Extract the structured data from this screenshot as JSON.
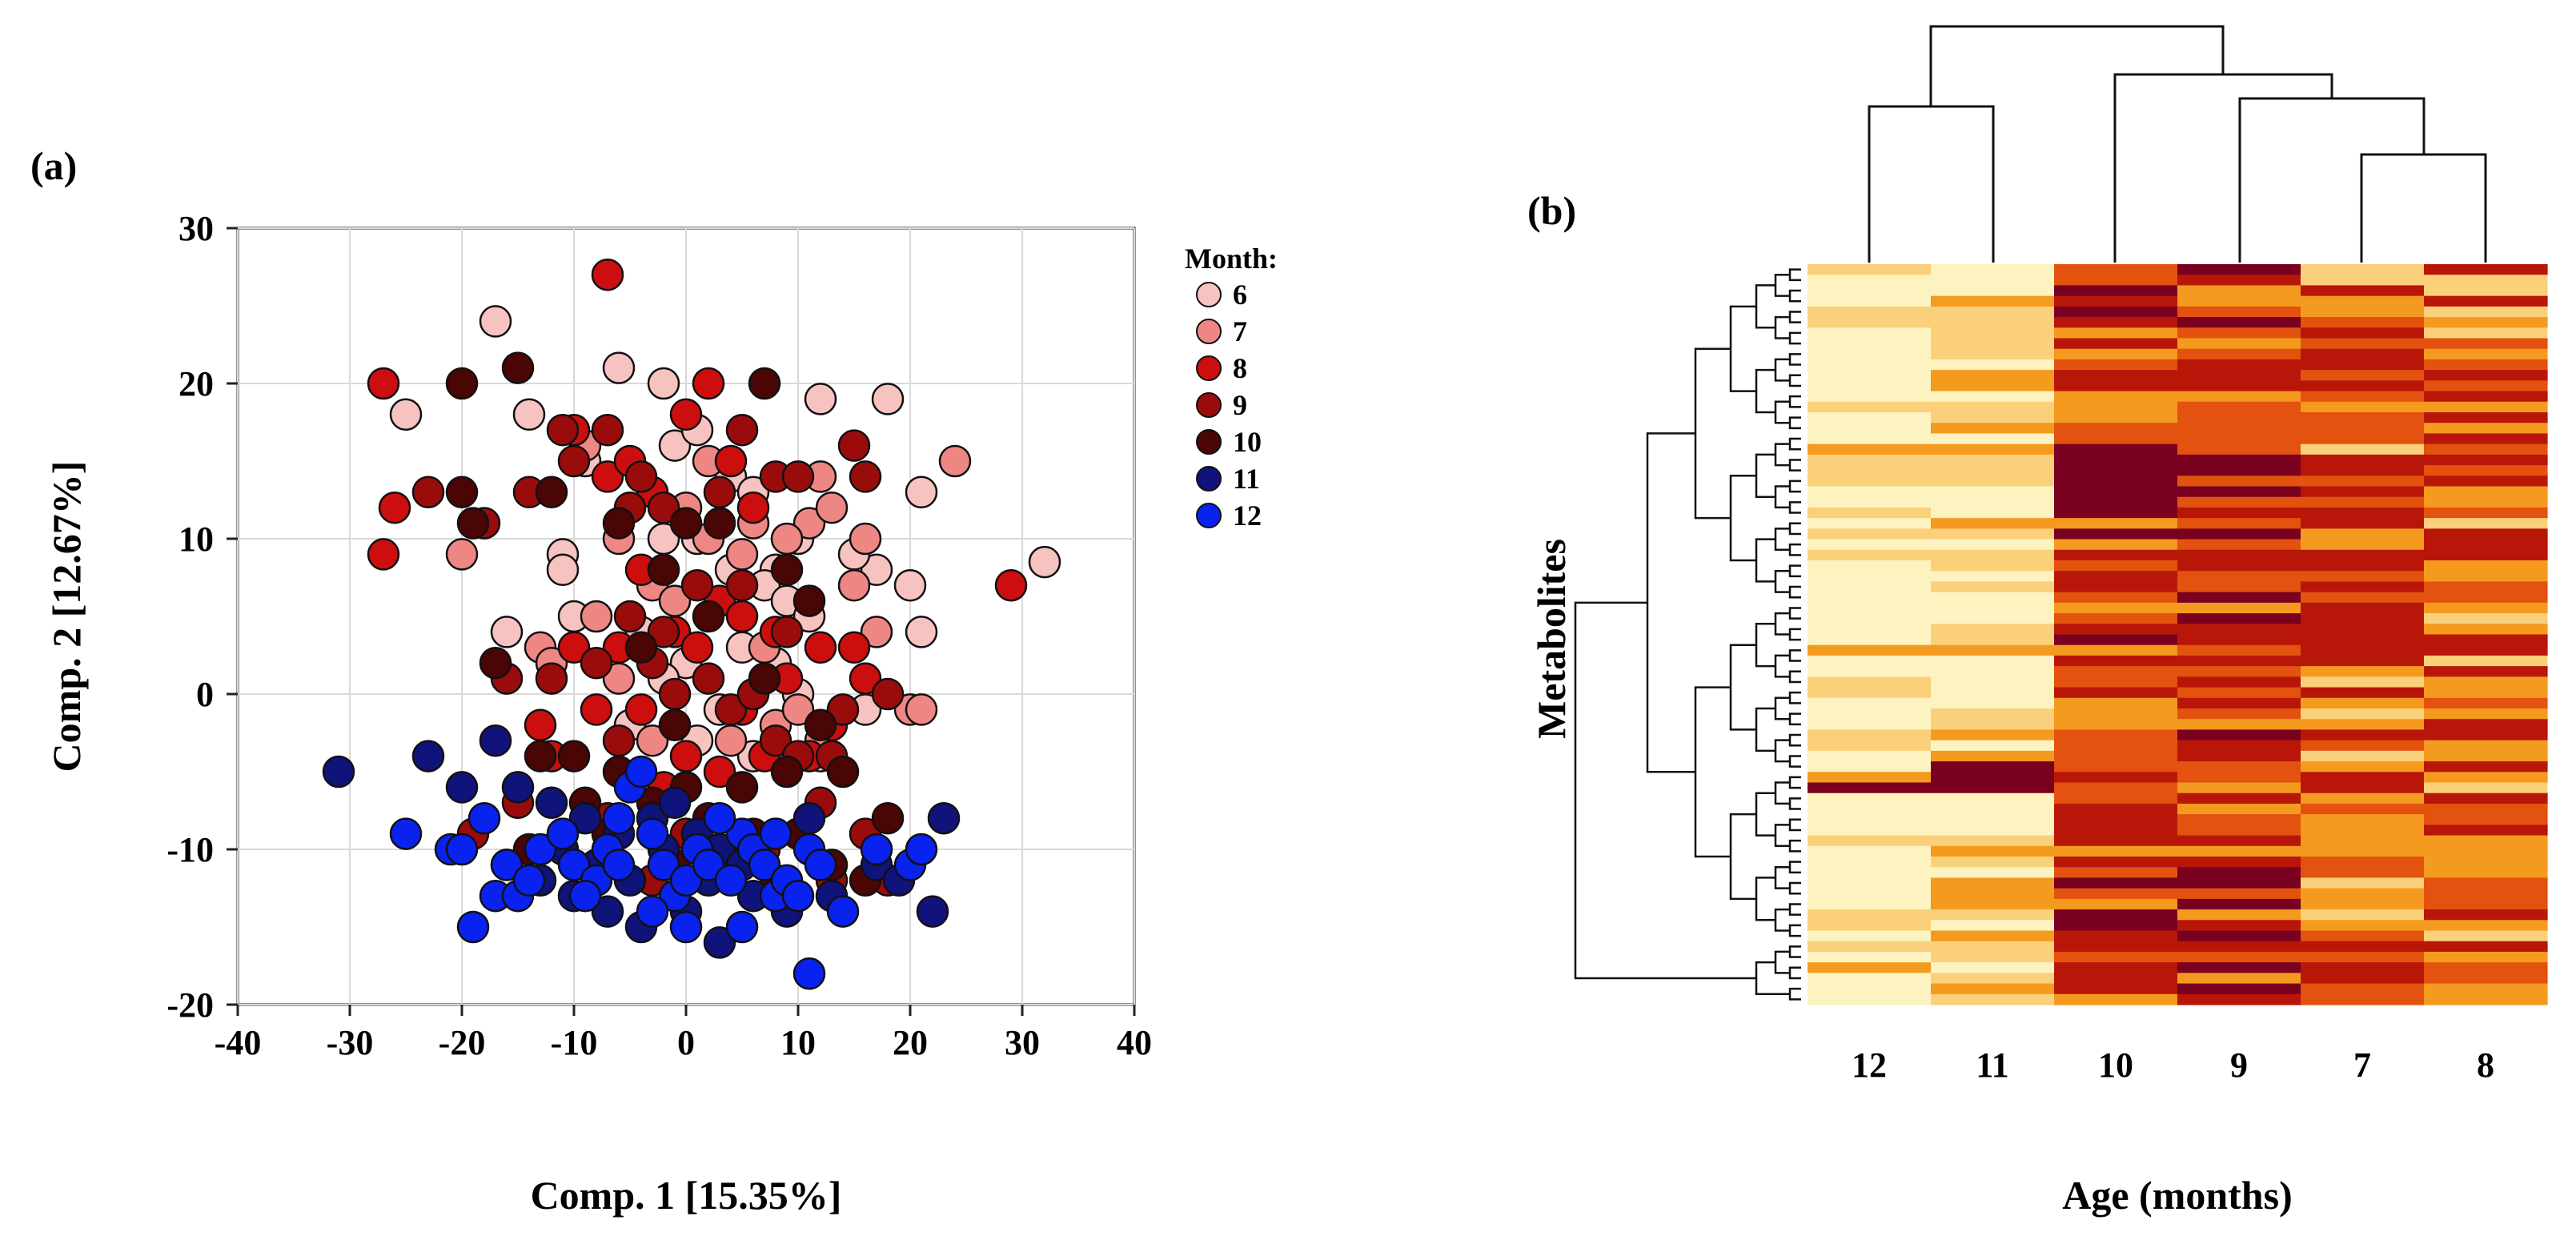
{
  "chart_data": [
    {
      "type": "scatter",
      "panel_label": "(a)",
      "xlabel": "Comp. 1 [15.35%]",
      "ylabel": "Comp. 2 [12.67%]",
      "xlim": [
        -40,
        40
      ],
      "ylim": [
        -20,
        30
      ],
      "xticks": [
        "-40",
        "-30",
        "-20",
        "-10",
        "0",
        "10",
        "20",
        "30",
        "40"
      ],
      "yticks": [
        "-20",
        "-10",
        "0",
        "10",
        "20",
        "30"
      ],
      "grid": true,
      "legend": {
        "title": "Month:",
        "position": "right"
      },
      "series": [
        {
          "name": "6",
          "color": "#f7c3c0",
          "points": [
            [
              -25,
              18
            ],
            [
              -17,
              24
            ],
            [
              -14,
              18
            ],
            [
              -9,
              15
            ],
            [
              -6,
              21
            ],
            [
              -2,
              20
            ],
            [
              -1,
              16
            ],
            [
              1,
              17
            ],
            [
              4,
              14
            ],
            [
              6,
              13
            ],
            [
              8,
              8
            ],
            [
              10,
              10
            ],
            [
              12,
              19
            ],
            [
              18,
              19
            ],
            [
              21,
              13
            ],
            [
              20,
              7
            ],
            [
              21,
              4
            ],
            [
              32,
              8.5
            ],
            [
              -11,
              9
            ],
            [
              -11,
              8
            ],
            [
              -2,
              10
            ],
            [
              1,
              10
            ],
            [
              4,
              8
            ],
            [
              7,
              7
            ],
            [
              9,
              6
            ],
            [
              11,
              5
            ],
            [
              -16,
              4
            ],
            [
              -10,
              5
            ],
            [
              -4,
              4
            ],
            [
              0,
              2
            ],
            [
              5,
              3
            ],
            [
              8,
              2
            ],
            [
              -2,
              1
            ],
            [
              3,
              -1
            ],
            [
              10,
              0
            ],
            [
              16,
              -1
            ],
            [
              -5,
              -2
            ],
            [
              1,
              -3
            ],
            [
              6,
              -4
            ],
            [
              12,
              -4
            ],
            [
              17,
              8
            ],
            [
              15,
              9
            ]
          ]
        },
        {
          "name": "7",
          "color": "#ee8784",
          "points": [
            [
              -20,
              9
            ],
            [
              -13,
              3
            ],
            [
              -12,
              2
            ],
            [
              -8,
              5
            ],
            [
              -3,
              7
            ],
            [
              -6,
              10
            ],
            [
              0,
              12
            ],
            [
              2,
              10
            ],
            [
              5,
              9
            ],
            [
              11,
              11
            ],
            [
              13,
              12
            ],
            [
              12,
              14
            ],
            [
              16,
              10
            ],
            [
              15,
              7
            ],
            [
              17,
              4
            ],
            [
              20,
              -1
            ],
            [
              21,
              -1
            ],
            [
              24,
              15
            ],
            [
              8,
              -2
            ],
            [
              4,
              -3
            ],
            [
              -3,
              -3
            ],
            [
              -6,
              1
            ],
            [
              -1,
              6
            ],
            [
              7,
              3
            ],
            [
              10,
              -1
            ],
            [
              12,
              -3
            ],
            [
              2,
              15
            ],
            [
              6,
              11
            ],
            [
              -9,
              16
            ],
            [
              9,
              10
            ]
          ]
        },
        {
          "name": "8",
          "color": "#cc0e0e",
          "points": [
            [
              -27,
              20
            ],
            [
              -26,
              12
            ],
            [
              -27,
              9
            ],
            [
              -7,
              27
            ],
            [
              -10,
              17
            ],
            [
              -7,
              14
            ],
            [
              -5,
              15
            ],
            [
              -3,
              13
            ],
            [
              0,
              18
            ],
            [
              2,
              20
            ],
            [
              4,
              15
            ],
            [
              6,
              12
            ],
            [
              -4,
              8
            ],
            [
              -1,
              4
            ],
            [
              3,
              6
            ],
            [
              5,
              5
            ],
            [
              8,
              4
            ],
            [
              12,
              3
            ],
            [
              15,
              3
            ],
            [
              16,
              1
            ],
            [
              29,
              7
            ],
            [
              -13,
              -2
            ],
            [
              -12,
              -4
            ],
            [
              -8,
              -1
            ],
            [
              -4,
              -1
            ],
            [
              0,
              -4
            ],
            [
              3,
              -5
            ],
            [
              7,
              -4
            ],
            [
              11,
              -4
            ],
            [
              -10,
              3
            ],
            [
              -6,
              3
            ],
            [
              1,
              3
            ],
            [
              9,
              1
            ],
            [
              13,
              -2
            ],
            [
              -2,
              -6
            ],
            [
              5,
              -1
            ]
          ]
        },
        {
          "name": "9",
          "color": "#9a0c0c",
          "points": [
            [
              -23,
              13
            ],
            [
              -18,
              11
            ],
            [
              -14,
              13
            ],
            [
              -11,
              17
            ],
            [
              -10,
              15
            ],
            [
              -7,
              17
            ],
            [
              -4,
              14
            ],
            [
              -5,
              12
            ],
            [
              -2,
              12
            ],
            [
              3,
              13
            ],
            [
              5,
              17
            ],
            [
              8,
              14
            ],
            [
              10,
              14
            ],
            [
              15,
              16
            ],
            [
              16,
              14
            ],
            [
              -16,
              1
            ],
            [
              -12,
              1
            ],
            [
              -8,
              2
            ],
            [
              -5,
              5
            ],
            [
              -3,
              2
            ],
            [
              -1,
              0
            ],
            [
              2,
              1
            ],
            [
              4,
              -1
            ],
            [
              6,
              0
            ],
            [
              8,
              -3
            ],
            [
              10,
              -4
            ],
            [
              13,
              -4
            ],
            [
              14,
              -1
            ],
            [
              18,
              0
            ],
            [
              18,
              -12
            ],
            [
              13,
              -12
            ],
            [
              7,
              -10
            ],
            [
              3,
              -11
            ],
            [
              -3,
              -12
            ],
            [
              -7,
              -8
            ],
            [
              -11,
              -9
            ],
            [
              -15,
              -7
            ],
            [
              -19,
              -9
            ],
            [
              -2,
              4
            ],
            [
              1,
              7
            ],
            [
              5,
              7
            ],
            [
              9,
              4
            ],
            [
              -6,
              -3
            ],
            [
              0,
              -9
            ],
            [
              12,
              -7
            ],
            [
              16,
              -9
            ]
          ]
        },
        {
          "name": "10",
          "color": "#4a0505",
          "points": [
            [
              -20,
              20
            ],
            [
              -15,
              21
            ],
            [
              -20,
              13
            ],
            [
              -19,
              11
            ],
            [
              -12,
              13
            ],
            [
              -6,
              11
            ],
            [
              -2,
              8
            ],
            [
              0,
              11
            ],
            [
              3,
              11
            ],
            [
              7,
              20
            ],
            [
              9,
              8
            ],
            [
              11,
              6
            ],
            [
              -17,
              2
            ],
            [
              -13,
              -4
            ],
            [
              -9,
              -7
            ],
            [
              -6,
              -5
            ],
            [
              -3,
              -7
            ],
            [
              0,
              -6
            ],
            [
              2,
              -8
            ],
            [
              4,
              -10
            ],
            [
              6,
              -9
            ],
            [
              8,
              -12
            ],
            [
              10,
              -9
            ],
            [
              13,
              -11
            ],
            [
              16,
              -12
            ],
            [
              18,
              -8
            ],
            [
              -7,
              -9
            ],
            [
              -1,
              -11
            ],
            [
              5,
              -6
            ],
            [
              9,
              -5
            ],
            [
              2,
              5
            ],
            [
              -4,
              3
            ],
            [
              7,
              1
            ],
            [
              12,
              -2
            ],
            [
              -10,
              -4
            ],
            [
              -14,
              -10
            ],
            [
              14,
              -5
            ],
            [
              -1,
              -2
            ]
          ]
        },
        {
          "name": "11",
          "color": "#10137a",
          "points": [
            [
              -31,
              -5
            ],
            [
              -23,
              -4
            ],
            [
              -20,
              -6
            ],
            [
              -17,
              -3
            ],
            [
              -15,
              -6
            ],
            [
              -12,
              -7
            ],
            [
              -9,
              -8
            ],
            [
              -6,
              -9
            ],
            [
              -3,
              -8
            ],
            [
              -1,
              -7
            ],
            [
              1,
              -9
            ],
            [
              3,
              -10
            ],
            [
              5,
              -11
            ],
            [
              8,
              -9
            ],
            [
              11,
              -8
            ],
            [
              13,
              -13
            ],
            [
              17,
              -11
            ],
            [
              19,
              -12
            ],
            [
              22,
              -14
            ],
            [
              23,
              -8
            ],
            [
              -16,
              -11
            ],
            [
              -13,
              -12
            ],
            [
              -10,
              -13
            ],
            [
              -7,
              -14
            ],
            [
              -4,
              -15
            ],
            [
              0,
              -14
            ],
            [
              3,
              -16
            ],
            [
              6,
              -13
            ],
            [
              9,
              -14
            ],
            [
              -5,
              -12
            ],
            [
              -2,
              -10
            ],
            [
              2,
              -12
            ],
            [
              -8,
              -11
            ],
            [
              -11,
              -10
            ]
          ]
        },
        {
          "name": "12",
          "color": "#0a22ee",
          "points": [
            [
              -25,
              -9
            ],
            [
              -21,
              -10
            ],
            [
              -20,
              -10
            ],
            [
              -18,
              -8
            ],
            [
              -17,
              -13
            ],
            [
              -16,
              -11
            ],
            [
              -15,
              -13
            ],
            [
              -13,
              -10
            ],
            [
              -11,
              -9
            ],
            [
              -10,
              -11
            ],
            [
              -8,
              -12
            ],
            [
              -7,
              -10
            ],
            [
              -6,
              -8
            ],
            [
              -5,
              -6
            ],
            [
              -4,
              -5
            ],
            [
              -3,
              -9
            ],
            [
              -2,
              -11
            ],
            [
              -1,
              -13
            ],
            [
              0,
              -12
            ],
            [
              1,
              -10
            ],
            [
              2,
              -11
            ],
            [
              4,
              -12
            ],
            [
              5,
              -9
            ],
            [
              6,
              -10
            ],
            [
              7,
              -11
            ],
            [
              8,
              -13
            ],
            [
              9,
              -12
            ],
            [
              10,
              -13
            ],
            [
              11,
              -10
            ],
            [
              12,
              -11
            ],
            [
              11,
              -18
            ],
            [
              14,
              -14
            ],
            [
              17,
              -10
            ],
            [
              20,
              -11
            ],
            [
              21,
              -10
            ],
            [
              -19,
              -15
            ],
            [
              -14,
              -12
            ],
            [
              -9,
              -13
            ],
            [
              -3,
              -14
            ],
            [
              0,
              -15
            ],
            [
              5,
              -15
            ],
            [
              -6,
              -11
            ],
            [
              3,
              -8
            ],
            [
              8,
              -9
            ]
          ]
        }
      ]
    },
    {
      "type": "heatmap",
      "panel_label": "(b)",
      "xlabel": "Age (months)",
      "ylabel": "Metabolites",
      "columns": [
        "12",
        "11",
        "10",
        "9",
        "7",
        "8"
      ],
      "row_count": 70,
      "dendrogram": {
        "top": true,
        "left": true
      },
      "colormap": [
        "#fdf3c0",
        "#fbd07a",
        "#f49a1f",
        "#e3520e",
        "#b81608",
        "#7a0020"
      ]
    }
  ]
}
